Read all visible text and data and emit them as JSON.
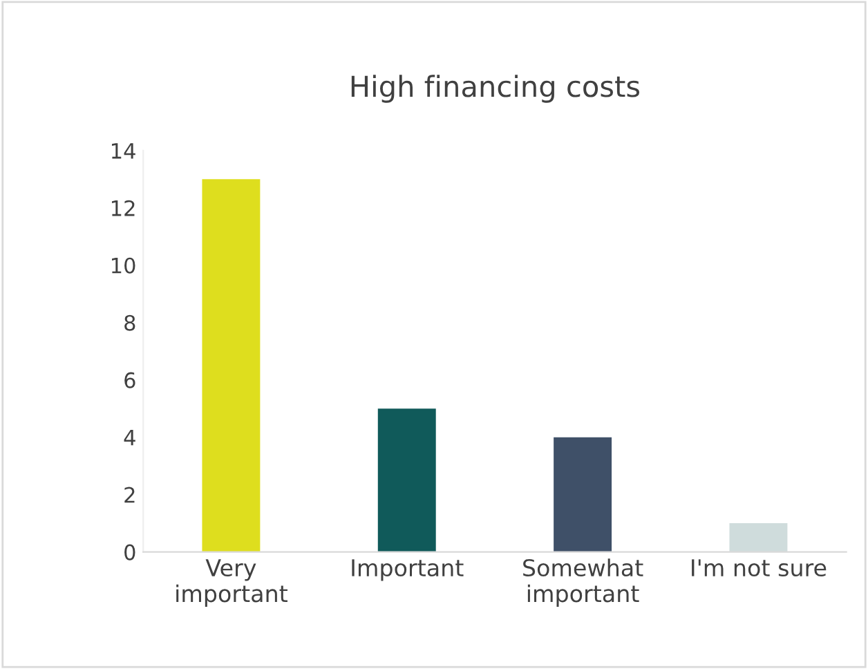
{
  "chart_data": {
    "type": "bar",
    "title": "High financing costs",
    "categories": [
      "Very\nimportant",
      "Important",
      "Somewhat\nimportant",
      "I'm not sure"
    ],
    "values": [
      13,
      5,
      4,
      1
    ],
    "colors": [
      "#dede1e",
      "#105a5a",
      "#3f5068",
      "#cfdcdc"
    ],
    "ylim": [
      0,
      14
    ],
    "yticks": [
      0,
      2,
      4,
      6,
      8,
      10,
      12,
      14
    ],
    "grid": false,
    "legend": false
  }
}
